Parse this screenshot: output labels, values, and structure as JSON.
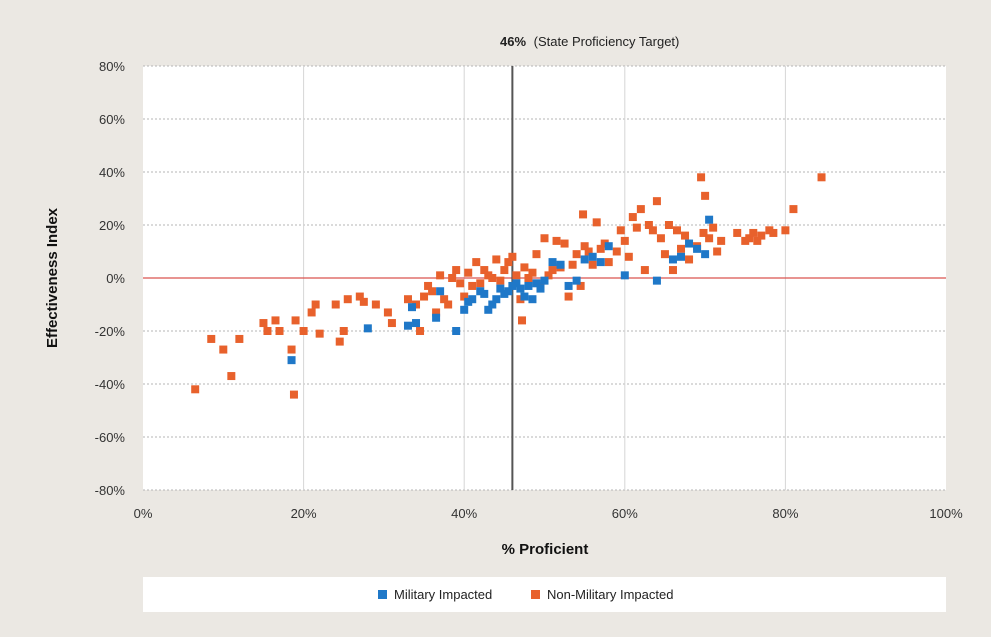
{
  "chart_data": {
    "type": "scatter",
    "title": "",
    "xlabel": "% Proficient",
    "ylabel": "Effectiveness Index",
    "xlim": [
      0,
      100
    ],
    "ylim": [
      -80,
      80
    ],
    "x_ticks": [
      0,
      20,
      40,
      60,
      80,
      100
    ],
    "x_tick_labels": [
      "0%",
      "20%",
      "40%",
      "60%",
      "80%",
      "100%"
    ],
    "y_ticks": [
      80,
      60,
      40,
      20,
      0,
      -20,
      -40,
      -60,
      -80
    ],
    "y_tick_labels": [
      "80%",
      "60%",
      "40%",
      "20%",
      "0%",
      "-20%",
      "-40%",
      "-60%",
      "-80%"
    ],
    "grid": true,
    "legend_position": "bottom",
    "reference_lines": {
      "vertical": {
        "x": 46,
        "label_bold": "46%",
        "label_rest": "(State Proficiency Target)",
        "color": "#555555"
      },
      "horizontal": {
        "y": 0,
        "color": "#d9534f"
      }
    },
    "series": [
      {
        "name": "Military Impacted",
        "color": "#1f78c8",
        "points": [
          [
            18.5,
            -31
          ],
          [
            28,
            -19
          ],
          [
            33,
            -18
          ],
          [
            33.5,
            -11
          ],
          [
            34,
            -17
          ],
          [
            36.5,
            -15
          ],
          [
            37,
            -5
          ],
          [
            39,
            -20
          ],
          [
            40,
            -12
          ],
          [
            40.5,
            -9
          ],
          [
            41,
            -8
          ],
          [
            42,
            -5
          ],
          [
            42.5,
            -6
          ],
          [
            43,
            -12
          ],
          [
            43.5,
            -10
          ],
          [
            44,
            -8
          ],
          [
            44.5,
            -4
          ],
          [
            45,
            -6
          ],
          [
            45.5,
            -5
          ],
          [
            46,
            -3
          ],
          [
            46.5,
            -2
          ],
          [
            47,
            -4
          ],
          [
            47.5,
            -7
          ],
          [
            48,
            -3
          ],
          [
            48.5,
            -8
          ],
          [
            49,
            -2
          ],
          [
            49.5,
            -4
          ],
          [
            50,
            -1
          ],
          [
            51,
            6
          ],
          [
            52,
            5
          ],
          [
            53,
            -3
          ],
          [
            54,
            -1
          ],
          [
            55,
            7
          ],
          [
            56,
            8
          ],
          [
            57,
            6
          ],
          [
            58,
            12
          ],
          [
            60,
            1
          ],
          [
            64,
            -1
          ],
          [
            66,
            7
          ],
          [
            67,
            8
          ],
          [
            68,
            13
          ],
          [
            69,
            11
          ],
          [
            70,
            9
          ],
          [
            70.5,
            22
          ]
        ]
      },
      {
        "name": "Non-Military Impacted",
        "color": "#e8612c",
        "points": [
          [
            6.5,
            -42
          ],
          [
            8.5,
            -23
          ],
          [
            10,
            -27
          ],
          [
            11,
            -37
          ],
          [
            12,
            -23
          ],
          [
            15,
            -17
          ],
          [
            15.5,
            -20
          ],
          [
            16.5,
            -16
          ],
          [
            17,
            -20
          ],
          [
            18.5,
            -27
          ],
          [
            19,
            -16
          ],
          [
            18.8,
            -44
          ],
          [
            20,
            -20
          ],
          [
            21,
            -13
          ],
          [
            21.5,
            -10
          ],
          [
            22,
            -21
          ],
          [
            24,
            -10
          ],
          [
            24.5,
            -24
          ],
          [
            25,
            -20
          ],
          [
            25.5,
            -8
          ],
          [
            27,
            -7
          ],
          [
            27.5,
            -9
          ],
          [
            29,
            -10
          ],
          [
            30.5,
            -13
          ],
          [
            31,
            -17
          ],
          [
            33,
            -8
          ],
          [
            34,
            -10
          ],
          [
            34.5,
            -20
          ],
          [
            35,
            -7
          ],
          [
            35.5,
            -3
          ],
          [
            36,
            -5
          ],
          [
            36.5,
            -13
          ],
          [
            37,
            1
          ],
          [
            37.5,
            -8
          ],
          [
            38,
            -10
          ],
          [
            38.5,
            0
          ],
          [
            39,
            3
          ],
          [
            39.5,
            -2
          ],
          [
            40,
            -7
          ],
          [
            40.5,
            2
          ],
          [
            41,
            -3
          ],
          [
            41.5,
            6
          ],
          [
            42,
            -2
          ],
          [
            42.5,
            3
          ],
          [
            43,
            1
          ],
          [
            43.5,
            0
          ],
          [
            44,
            7
          ],
          [
            44.5,
            -1
          ],
          [
            45,
            3
          ],
          [
            45.5,
            6
          ],
          [
            46,
            8
          ],
          [
            46.5,
            1
          ],
          [
            47,
            -8
          ],
          [
            47.2,
            -16
          ],
          [
            47.5,
            4
          ],
          [
            48,
            0
          ],
          [
            48.5,
            2
          ],
          [
            49,
            9
          ],
          [
            49.5,
            -3
          ],
          [
            50,
            15
          ],
          [
            50.5,
            1
          ],
          [
            51,
            3
          ],
          [
            51.5,
            14
          ],
          [
            52,
            4
          ],
          [
            52.5,
            13
          ],
          [
            53,
            -7
          ],
          [
            53.5,
            5
          ],
          [
            54,
            9
          ],
          [
            54.5,
            -3
          ],
          [
            54.8,
            24
          ],
          [
            55,
            12
          ],
          [
            55.5,
            10
          ],
          [
            56,
            5
          ],
          [
            56.5,
            21
          ],
          [
            57,
            11
          ],
          [
            57.5,
            13
          ],
          [
            58,
            6
          ],
          [
            59,
            10
          ],
          [
            59.5,
            18
          ],
          [
            60,
            14
          ],
          [
            60.5,
            8
          ],
          [
            61,
            23
          ],
          [
            61.5,
            19
          ],
          [
            62,
            26
          ],
          [
            62.5,
            3
          ],
          [
            63,
            20
          ],
          [
            63.5,
            18
          ],
          [
            64,
            29
          ],
          [
            64.5,
            15
          ],
          [
            65,
            9
          ],
          [
            65.5,
            20
          ],
          [
            66,
            3
          ],
          [
            66.5,
            18
          ],
          [
            67,
            11
          ],
          [
            67.5,
            16
          ],
          [
            68,
            7
          ],
          [
            69,
            12
          ],
          [
            69.5,
            38
          ],
          [
            69.8,
            17
          ],
          [
            70,
            31
          ],
          [
            70.5,
            15
          ],
          [
            71,
            19
          ],
          [
            71.5,
            10
          ],
          [
            72,
            14
          ],
          [
            74,
            17
          ],
          [
            75,
            14
          ],
          [
            75.5,
            15
          ],
          [
            76,
            17
          ],
          [
            76.5,
            14
          ],
          [
            77,
            16
          ],
          [
            78,
            18
          ],
          [
            78.5,
            17
          ],
          [
            80,
            18
          ],
          [
            81,
            26
          ],
          [
            84.5,
            38
          ]
        ]
      }
    ]
  }
}
